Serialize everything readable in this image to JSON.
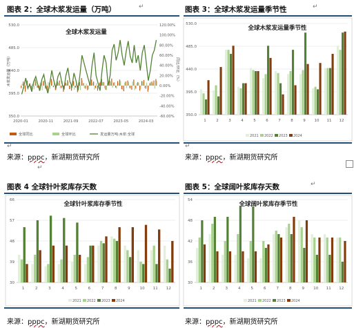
{
  "top_left": {
    "caption": "图表 2：全球木浆发运量（万吨）",
    "chart_data": {
      "type": "bar+line",
      "title": "全球木浆发运量",
      "ylabel_left": "木浆发运量（万吨）",
      "ylabel_right": "同比/环比（%）",
      "ylim_left": [
        350,
        530
      ],
      "yticks_left": [
        "530.0",
        "485.0",
        "440.0",
        "395.0",
        "350.0"
      ],
      "ylim_right": [
        -0.6,
        1.2
      ],
      "yticks_right": [
        "120.00%",
        "100.00%",
        "80.00%",
        "60.00%",
        "40.00%",
        "20.00%",
        "0.00%",
        "-20.00%",
        "-40.00%",
        "-60.00%"
      ],
      "xticks": [
        "2020-01",
        "2020-11",
        "2021-09",
        "2022-07",
        "2023-05",
        "2024-03"
      ],
      "legend": [
        "全球同比",
        "全球环比",
        "发运量万吨:木浆:全球"
      ],
      "colors": {
        "yoy": "#c55a11",
        "mom": "#a9d18e",
        "line": "#538135"
      },
      "series_line": [
        393,
        408,
        425,
        405,
        412,
        398,
        418,
        428,
        412,
        400,
        422,
        432,
        410,
        395,
        415,
        440,
        420,
        405,
        428,
        436,
        415,
        402,
        430,
        445,
        418,
        408,
        435,
        420,
        400,
        432,
        470,
        455,
        440,
        425,
        410,
        450,
        475,
        430,
        415,
        400,
        440,
        470,
        455,
        410,
        430,
        480,
        492,
        460,
        475,
        500,
        470,
        450,
        478,
        498,
        468,
        455,
        490,
        455,
        470,
        440,
        475,
        490,
        455,
        420,
        440,
        470,
        480,
        500
      ],
      "series_yoy": [
        -0.05,
        0.08,
        -0.12,
        0.1,
        0.04,
        -0.08,
        0.06,
        0.12,
        -0.04,
        -0.1,
        0.07,
        0.09,
        -0.06,
        -0.11,
        0.05,
        0.13,
        -0.03,
        -0.09,
        0.08,
        0.1,
        -0.05,
        -0.12,
        0.06,
        0.11,
        -0.07,
        -0.1,
        0.09,
        -0.04,
        -0.13,
        0.07,
        0.15,
        0.05,
        -0.06,
        -0.09,
        0.04,
        0.12,
        0.08,
        -0.05,
        -0.1,
        0.06,
        0.13,
        0.07,
        -0.08,
        0.05,
        0.1,
        0.14,
        0.06,
        -0.04,
        0.09,
        0.12,
        -0.07,
        -0.11,
        0.08,
        0.1,
        -0.05,
        -0.08,
        0.12,
        -0.06,
        0.07,
        -0.1,
        0.09,
        0.11,
        -0.06,
        -0.12,
        0.05,
        0.08,
        0.1,
        0.13
      ],
      "series_mom": [
        0.04,
        -0.06,
        0.09,
        -0.08,
        0.05,
        0.03,
        -0.07,
        0.08,
        -0.05,
        0.06,
        -0.09,
        0.1,
        -0.04,
        0.07,
        -0.06,
        0.08,
        0.05,
        -0.08,
        0.06,
        -0.05,
        0.09,
        -0.07,
        0.04,
        0.08,
        -0.06,
        0.05,
        -0.08,
        0.07,
        0.06,
        -0.09,
        0.1,
        -0.05,
        0.04,
        -0.07,
        0.09,
        0.06,
        -0.08,
        0.05,
        -0.06,
        0.08,
        0.07,
        -0.05,
        -0.09,
        0.06,
        0.08,
        -0.04,
        0.07,
        -0.06,
        0.05,
        0.09,
        -0.08,
        0.06,
        -0.05,
        0.07,
        -0.06,
        0.08,
        -0.09,
        0.05,
        0.06,
        -0.07,
        0.08,
        -0.05,
        0.06,
        -0.08,
        0.07,
        0.05,
        -0.06,
        0.09
      ]
    },
    "source": {
      "label": "来源：",
      "pppc": "pppc",
      "sep": "，",
      "org": "新湖期货研究所"
    }
  },
  "top_right": {
    "caption": "图表 3：全球木浆发运量季节性",
    "chart_data": {
      "type": "bar",
      "title": "全球木浆发运量季节性",
      "ylim": [
        350,
        530
      ],
      "yticks": [
        "530.0",
        "485.0",
        "440.0",
        "395.0",
        "350.0"
      ],
      "categories": [
        "1",
        "2",
        "3",
        "4",
        "5",
        "6",
        "7",
        "8",
        "9",
        "10",
        "11",
        "12"
      ],
      "series": [
        {
          "name": "2021",
          "color": "#e2efda",
          "values": [
            400,
            398,
            478,
            405,
            442,
            422,
            436,
            430,
            430,
            402,
            442,
            486
          ]
        },
        {
          "name": "2022",
          "color": "#a9d18e",
          "values": [
            392,
            408,
            478,
            402,
            438,
            430,
            432,
            436,
            438,
            405,
            442,
            478
          ]
        },
        {
          "name": "2023",
          "color": "#548235",
          "values": [
            380,
            386,
            470,
            412,
            436,
            486,
            412,
            478,
            512,
            400,
            442,
            512
          ]
        },
        {
          "name": "2024",
          "color": "#843c0c",
          "values": [
            418,
            444,
            486,
            412,
            436,
            462,
            390,
            408,
            450,
            452,
            470,
            514
          ]
        }
      ]
    },
    "source": {
      "label": "来源：",
      "pppc": "pppc",
      "sep": "，",
      "org": "新湖期货研究所"
    }
  },
  "bottom_left": {
    "caption": "图表 4 全球针叶浆库存天数",
    "chart_data": {
      "type": "bar",
      "title": "全球针叶浆库存季节性",
      "ylim": [
        30,
        66
      ],
      "yticks": [
        "66",
        "57",
        "48",
        "39",
        "30"
      ],
      "categories": [
        "1",
        "2",
        "3",
        "4",
        "5",
        "6",
        "7",
        "8",
        "9",
        "10",
        "11",
        "12"
      ],
      "series": [
        {
          "name": "2021",
          "color": "#e2efda",
          "values": [
            42,
            38,
            37,
            38,
            39,
            38,
            46,
            50,
            46,
            44,
            44,
            46
          ]
        },
        {
          "name": "2022",
          "color": "#a9d18e",
          "values": [
            40,
            42,
            38,
            40,
            42,
            41,
            48,
            49,
            44,
            39,
            46,
            40
          ]
        },
        {
          "name": "2023",
          "color": "#548235",
          "values": [
            54,
            57,
            59,
            58,
            56,
            46,
            47,
            48,
            41,
            38,
            38,
            36
          ]
        },
        {
          "name": "2024",
          "color": "#843c0c",
          "values": [
            38,
            44,
            46,
            46,
            42,
            46,
            50,
            54,
            54,
            55,
            53,
            48
          ]
        }
      ]
    },
    "source": {
      "label": "来源：",
      "pppc": "pppc",
      "sep": "，",
      "org": "新湖期货研究所"
    }
  },
  "bottom_right": {
    "caption": "图表 5：全球阔叶浆库存天数",
    "chart_data": {
      "type": "bar",
      "title": "全球阔叶浆库存季节性",
      "ylim": [
        30,
        54
      ],
      "yticks": [
        "54",
        "48",
        "42",
        "36",
        "30"
      ],
      "categories": [
        "1",
        "2",
        "3",
        "4",
        "5",
        "6",
        "7",
        "8",
        "9",
        "10",
        "11",
        "12"
      ],
      "series": [
        {
          "name": "2021",
          "color": "#e2efda",
          "values": [
            40,
            44,
            38,
            38,
            37,
            37,
            44,
            46,
            48,
            44,
            44,
            43
          ]
        },
        {
          "name": "2022",
          "color": "#a9d18e",
          "values": [
            43,
            47,
            42,
            44,
            42,
            42,
            45,
            47,
            46,
            43,
            43,
            43
          ]
        },
        {
          "name": "2023",
          "color": "#548235",
          "values": [
            48,
            49,
            49,
            52,
            52,
            40,
            44,
            44,
            40,
            38,
            38,
            36
          ]
        },
        {
          "name": "2024",
          "color": "#843c0c",
          "values": [
            41,
            39,
            39,
            39,
            39,
            41,
            43,
            49,
            48,
            43,
            43,
            42
          ]
        }
      ]
    },
    "source": {
      "label": "来源：",
      "pppc": "pppc",
      "sep": "，",
      "org": "新湖期货研究所"
    }
  }
}
